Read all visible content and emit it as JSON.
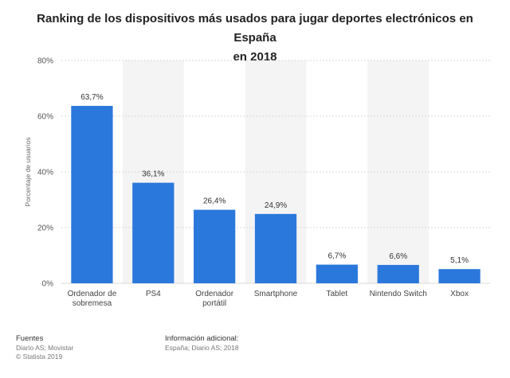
{
  "title_line1": "Ranking de los dispositivos más usados para jugar deportes electrónicos en España",
  "title_line2": "en 2018",
  "footer": {
    "sources_heading": "Fuentes",
    "sources_line1": "Diario AS; Movistar",
    "sources_line2": "© Statista 2019",
    "info_heading": "Información adicional:",
    "info_line1": "España; Diario AS; 2018"
  },
  "colors": {
    "bar": "#2b78dc",
    "band": "#f4f4f4",
    "grid": "#d8d8d8"
  },
  "chart_data": {
    "type": "bar",
    "title": "Ranking de los dispositivos más usados para jugar deportes electrónicos en España en 2018",
    "xlabel": "",
    "ylabel": "Porcentaje de usuarios",
    "ylim": [
      0,
      80
    ],
    "yticks": [
      0,
      20,
      40,
      60,
      80
    ],
    "ytick_labels": [
      "0%",
      "20%",
      "40%",
      "60%",
      "80%"
    ],
    "grid": true,
    "categories": [
      [
        "Ordenador de",
        "sobremesa"
      ],
      [
        "PS4"
      ],
      [
        "Ordenador",
        "portátil"
      ],
      [
        "Smartphone"
      ],
      [
        "Tablet"
      ],
      [
        "Nintendo Switch"
      ],
      [
        "Xbox"
      ]
    ],
    "values": [
      63.7,
      36.1,
      26.4,
      24.9,
      6.7,
      6.6,
      5.1
    ],
    "value_labels": [
      "63,7%",
      "36,1%",
      "26,4%",
      "24,9%",
      "6,7%",
      "6,6%",
      "5,1%"
    ]
  }
}
